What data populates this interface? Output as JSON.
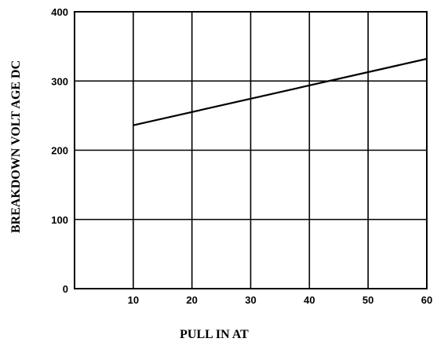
{
  "chart_data": {
    "type": "line",
    "title": "",
    "xlabel": "PULL IN AT",
    "ylabel": "BREAKDOWN VOLT AGE DC",
    "xlim": [
      0,
      60
    ],
    "ylim": [
      0,
      400
    ],
    "x_ticks": [
      "10",
      "20",
      "30",
      "40",
      "50",
      "60"
    ],
    "y_ticks": [
      "0",
      "100",
      "200",
      "300",
      "400"
    ],
    "grid": true,
    "legend": "none",
    "series": [
      {
        "x": [
          10,
          60
        ],
        "y": [
          236,
          332
        ]
      }
    ]
  }
}
